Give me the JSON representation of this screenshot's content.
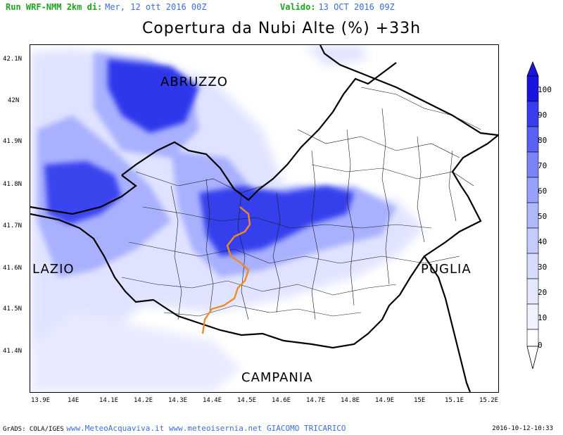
{
  "header": {
    "run_label": "Run WRF-NMM 2km di:",
    "run_date": "Mer, 12 ott 2016 00Z",
    "valid_label": "Valido:",
    "valid_date": "13 OCT 2016 09Z"
  },
  "title": "Copertura da Nubi Alte (%) +33h",
  "map": {
    "lat_ticks": [
      "42.1N",
      "42N",
      "41.9N",
      "41.8N",
      "41.7N",
      "41.6N",
      "41.5N",
      "41.4N"
    ],
    "lon_ticks": [
      "13.9E",
      "14E",
      "14.1E",
      "14.2E",
      "14.3E",
      "14.4E",
      "14.5E",
      "14.6E",
      "14.7E",
      "14.8E",
      "14.9E",
      "15E",
      "15.1E",
      "15.2E"
    ],
    "regions": [
      "ABRUZZO",
      "LAZIO",
      "PUGLIA",
      "CAMPANIA"
    ],
    "colors": {
      "cloud_low": "#d7dcff",
      "cloud_mid": "#9aa4ff",
      "cloud_high": "#2b35e8",
      "border": "#000000",
      "province_line": "#f08a24"
    }
  },
  "colorbar": {
    "levels": [
      "100",
      "90",
      "80",
      "70",
      "60",
      "50",
      "40",
      "30",
      "20",
      "10",
      "0"
    ],
    "colors": [
      "#1a14e0",
      "#3a3cf0",
      "#5a61f5",
      "#7a84f8",
      "#97a0fb",
      "#b0b8fc",
      "#c5ccfd",
      "#d6dcfe",
      "#e4e8fe",
      "#eff2ff"
    ]
  },
  "footer": {
    "grads": "GrADS: COLA/IGES",
    "credits": "www.MeteoAcquaviva.it www.meteoisernia.net GIACOMO TRICARICO",
    "timestamp": "2016-10-12-10:33"
  }
}
